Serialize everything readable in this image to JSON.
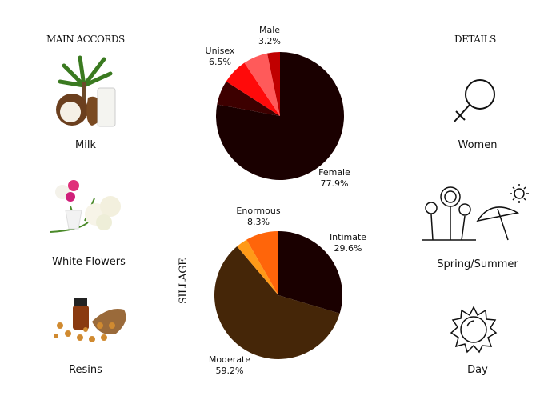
{
  "main_accords": {
    "heading": "MAIN ACCORDS",
    "items": [
      {
        "label": "Milk",
        "icon": "milk-coconut-image"
      },
      {
        "label": "White Flowers",
        "icon": "white-flowers-image"
      },
      {
        "label": "Resins",
        "icon": "resins-image"
      }
    ]
  },
  "details": {
    "heading": "DETAILS",
    "items": [
      {
        "label": "Women",
        "icon": "female-symbol-icon"
      },
      {
        "label": "Spring/Summer",
        "icon": "flowers-umbrella-icon"
      },
      {
        "label": "Day",
        "icon": "sun-icon"
      }
    ]
  },
  "sillage_label": "SILLAGE",
  "chart_data": [
    {
      "type": "pie",
      "slices": [
        {
          "name": "Female",
          "value": 77.9,
          "color": "#1a0000",
          "label": "Female",
          "pct": "77.9%"
        },
        {
          "name": "",
          "value": 6.2,
          "color": "#3d0000"
        },
        {
          "name": "Unisex",
          "value": 6.5,
          "color": "#ff0a0a",
          "label": "Unisex",
          "pct": "6.5%"
        },
        {
          "name": "",
          "value": 6.2,
          "color": "#ff5a5a"
        },
        {
          "name": "Male",
          "value": 3.2,
          "color": "#c00000",
          "label": "Male",
          "pct": "3.2%"
        }
      ]
    },
    {
      "type": "pie",
      "title": "SILLAGE",
      "slices": [
        {
          "name": "Intimate",
          "value": 29.6,
          "color": "#1a0000",
          "label": "Intimate",
          "pct": "29.6%"
        },
        {
          "name": "Moderate",
          "value": 59.2,
          "color": "#452608",
          "label": "Moderate",
          "pct": "59.2%"
        },
        {
          "name": "",
          "value": 2.9,
          "color": "#ff9a18"
        },
        {
          "name": "Enormous",
          "value": 8.3,
          "color": "#ff650a",
          "label": "Enormous",
          "pct": "8.3%"
        }
      ]
    }
  ]
}
